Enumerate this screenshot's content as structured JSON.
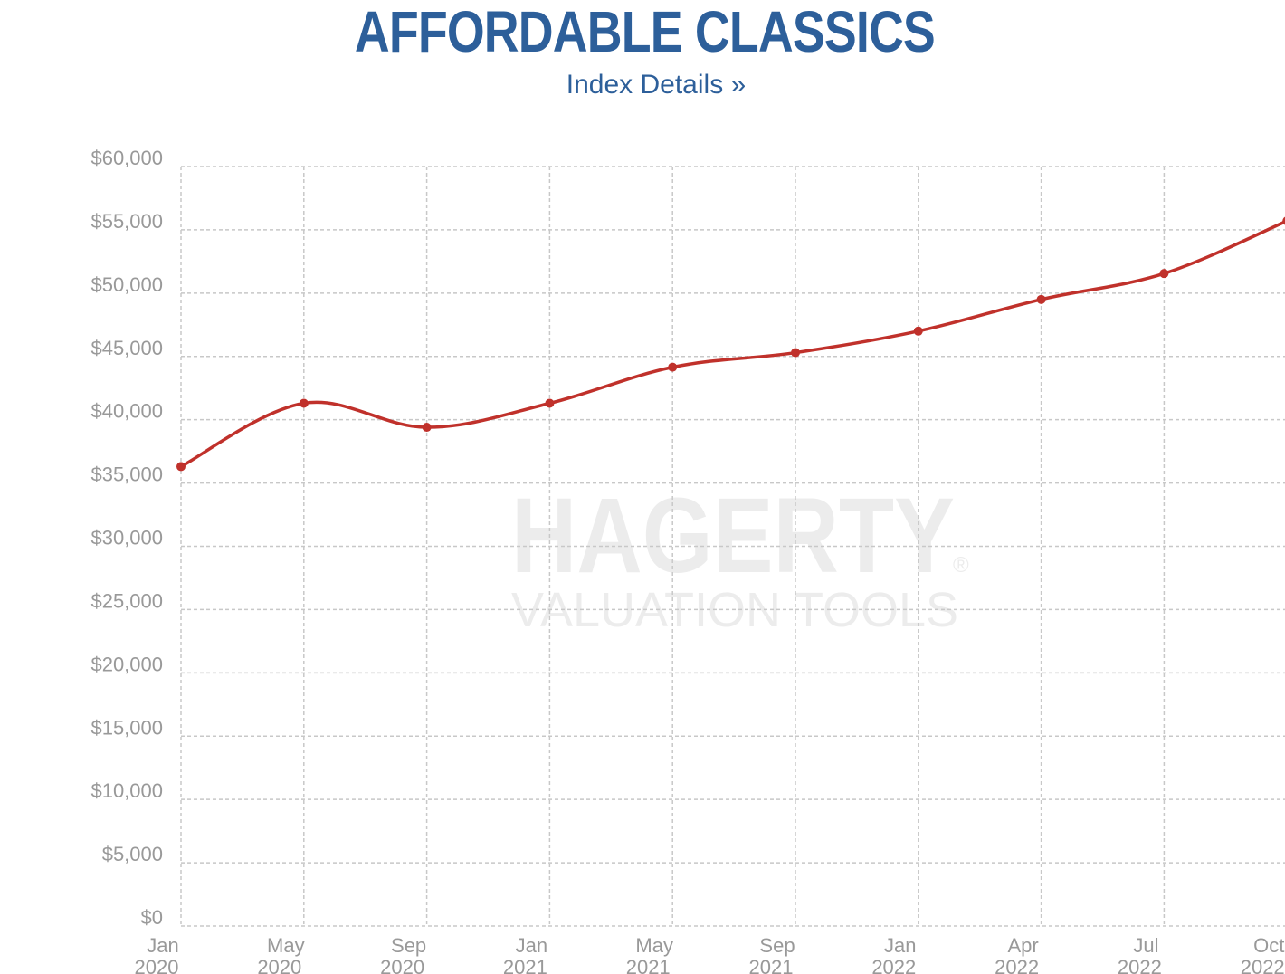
{
  "header": {
    "title": "AFFORDABLE CLASSICS",
    "link_label": "Index Details »"
  },
  "watermark": {
    "brand": "HAGERTY",
    "registered_mark": "®",
    "tagline": "VALUATION TOOLS"
  },
  "colors": {
    "title": "#2d5f9a",
    "link": "#2d5f9a",
    "series": "#c0312b",
    "grid": "#c8c8c8",
    "axis_text": "#999999",
    "watermark": "#ececec"
  },
  "chart_data": {
    "type": "line",
    "title": "AFFORDABLE CLASSICS",
    "xlabel": "",
    "ylabel": "",
    "ylim": [
      0,
      60000
    ],
    "y_tick_step": 5000,
    "y_tick_labels": [
      "$0",
      "$5,000",
      "$10,000",
      "$15,000",
      "$20,000",
      "$25,000",
      "$30,000",
      "$35,000",
      "$40,000",
      "$45,000",
      "$50,000",
      "$55,000",
      "$60,000"
    ],
    "x_ticks": [
      {
        "date": "2020-01",
        "month": "Jan",
        "year": "2020"
      },
      {
        "date": "2020-05",
        "month": "May",
        "year": "2020"
      },
      {
        "date": "2020-09",
        "month": "Sep",
        "year": "2020"
      },
      {
        "date": "2021-01",
        "month": "Jan",
        "year": "2021"
      },
      {
        "date": "2021-05",
        "month": "May",
        "year": "2021"
      },
      {
        "date": "2021-09",
        "month": "Sep",
        "year": "2021"
      },
      {
        "date": "2022-01",
        "month": "Jan",
        "year": "2022"
      },
      {
        "date": "2022-04",
        "month": "Apr",
        "year": "2022"
      },
      {
        "date": "2022-07",
        "month": "Jul",
        "year": "2022"
      },
      {
        "date": "2022-10",
        "month": "Oct",
        "year": "2022"
      }
    ],
    "grid": true,
    "legend": "none",
    "series": [
      {
        "points": [
          {
            "x": "2020-01",
            "y": 36300
          },
          {
            "x": "2020-05",
            "y": 41300
          },
          {
            "x": "2020-09",
            "y": 39400
          },
          {
            "x": "2021-01",
            "y": 41300
          },
          {
            "x": "2021-05",
            "y": 44150
          },
          {
            "x": "2021-09",
            "y": 45300
          },
          {
            "x": "2022-01",
            "y": 47000
          },
          {
            "x": "2022-04",
            "y": 49500
          },
          {
            "x": "2022-07",
            "y": 51550
          },
          {
            "x": "2022-10",
            "y": 55700
          }
        ]
      }
    ]
  }
}
